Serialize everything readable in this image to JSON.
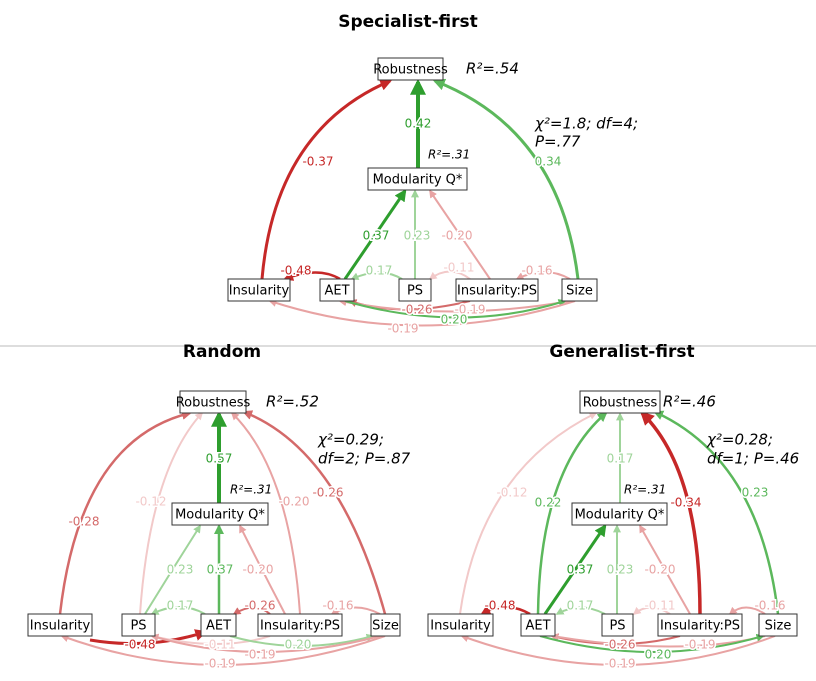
{
  "panels": [
    {
      "title": "Specialist-first",
      "nodes": [
        "Robustness",
        "Modularity Q*",
        "Insularity",
        "AET",
        "PS",
        "Insularity:PS",
        "Size"
      ],
      "r2": "R²=.54",
      "r2_modularity": "R²=.31",
      "fit": [
        "χ²=1.8;  df=4;",
        "P=.77"
      ],
      "edges": [
        {
          "label": "-0.37",
          "color": "#c62828"
        },
        {
          "label": "0.42",
          "color": "#2e9e2e"
        },
        {
          "label": "0.34",
          "color": "#5cb85c"
        },
        {
          "label": "0.37",
          "color": "#2e9e2e"
        },
        {
          "label": "0.23",
          "color": "#9fd49a"
        },
        {
          "label": "-0.20",
          "color": "#e8a3a3"
        },
        {
          "label": "-0.48",
          "color": "#c62828"
        },
        {
          "label": "0.17",
          "color": "#9fd49a"
        },
        {
          "label": "-0.11",
          "color": "#f2c9c9"
        },
        {
          "label": "-0.16",
          "color": "#e8a3a3"
        },
        {
          "label": "-0.26",
          "color": "#d46a6a"
        },
        {
          "label": "-0.19",
          "color": "#e8a3a3"
        },
        {
          "label": "0.20",
          "color": "#5cb85c"
        },
        {
          "label": "-0.19",
          "color": "#e8a3a3"
        }
      ]
    },
    {
      "title": "Random",
      "nodes": [
        "Robustness",
        "Modularity Q*",
        "Insularity",
        "PS",
        "AET",
        "Insularity:PS",
        "Size"
      ],
      "r2": "R²=.52",
      "r2_modularity": "R²=.31",
      "fit": [
        "χ²=0.29;",
        "df=2; P=.87"
      ],
      "edges": [
        {
          "label": "-0.28",
          "color": "#d46a6a"
        },
        {
          "label": "-0.12",
          "color": "#f2c9c9"
        },
        {
          "label": "0.57",
          "color": "#2e9e2e"
        },
        {
          "label": "-0.20",
          "color": "#e8a3a3"
        },
        {
          "label": "-0.26",
          "color": "#d46a6a"
        },
        {
          "label": "0.23",
          "color": "#9fd49a"
        },
        {
          "label": "0.37",
          "color": "#5cb85c"
        },
        {
          "label": "-0.20",
          "color": "#e8a3a3"
        },
        {
          "label": "0.17",
          "color": "#9fd49a"
        },
        {
          "label": "-0.26",
          "color": "#d46a6a"
        },
        {
          "label": "-0.16",
          "color": "#e8a3a3"
        },
        {
          "label": "-0.48",
          "color": "#c62828"
        },
        {
          "label": "-0.11",
          "color": "#f2c9c9"
        },
        {
          "label": "0.20",
          "color": "#9fd49a"
        },
        {
          "label": "-0.19",
          "color": "#e8a3a3"
        },
        {
          "label": "-0.19",
          "color": "#e8a3a3"
        }
      ]
    },
    {
      "title": "Generalist-first",
      "nodes": [
        "Robustness",
        "Modularity Q*",
        "Insularity",
        "AET",
        "PS",
        "Insularity:PS",
        "Size"
      ],
      "r2": "R²=.46",
      "r2_modularity": "R²=.31",
      "fit": [
        "χ²=0.28;",
        "df=1; P=.46"
      ],
      "edges": [
        {
          "label": "-0.12",
          "color": "#f2c9c9"
        },
        {
          "label": "0.22",
          "color": "#5cb85c"
        },
        {
          "label": "0.17",
          "color": "#9fd49a"
        },
        {
          "label": "-0.34",
          "color": "#c62828"
        },
        {
          "label": "0.23",
          "color": "#5cb85c"
        },
        {
          "label": "0.37",
          "color": "#2e9e2e"
        },
        {
          "label": "0.23",
          "color": "#9fd49a"
        },
        {
          "label": "-0.20",
          "color": "#e8a3a3"
        },
        {
          "label": "-0.48",
          "color": "#c62828"
        },
        {
          "label": "0.17",
          "color": "#9fd49a"
        },
        {
          "label": "-0.11",
          "color": "#f2c9c9"
        },
        {
          "label": "-0.16",
          "color": "#e8a3a3"
        },
        {
          "label": "-0.26",
          "color": "#d46a6a"
        },
        {
          "label": "-0.19",
          "color": "#e8a3a3"
        },
        {
          "label": "0.20",
          "color": "#5cb85c"
        },
        {
          "label": "-0.19",
          "color": "#e8a3a3"
        }
      ]
    }
  ]
}
